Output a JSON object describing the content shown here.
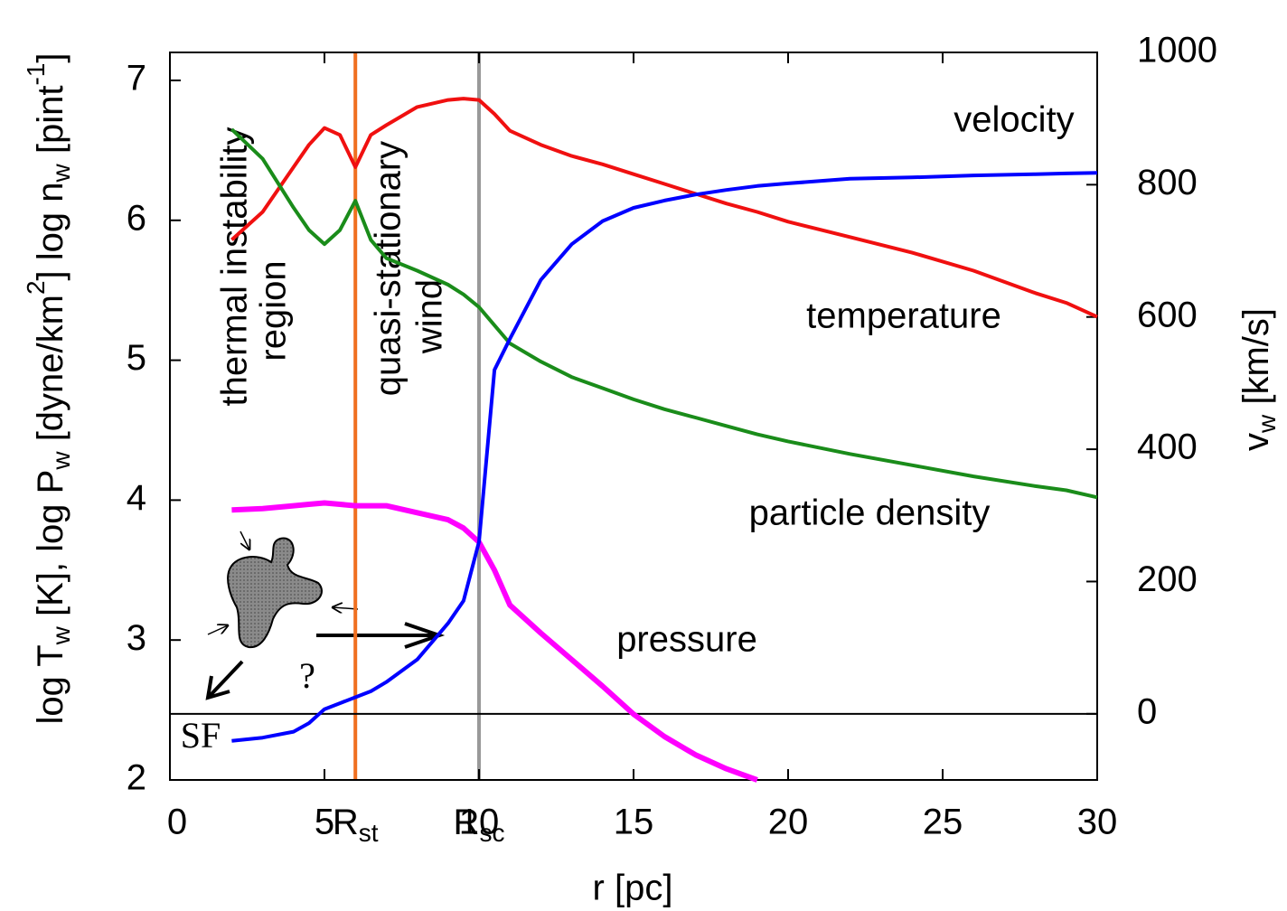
{
  "chart_data": {
    "type": "line",
    "x": [
      2,
      3,
      4,
      4.5,
      5,
      5.5,
      6,
      6.5,
      7,
      8,
      9,
      9.5,
      10,
      10.5,
      11,
      12,
      13,
      14,
      15,
      16,
      17,
      18,
      19,
      20,
      22,
      24,
      26,
      28,
      29,
      30
    ],
    "series": [
      {
        "name": "temperature",
        "color": "#f01010",
        "axis": "y",
        "values": [
          5.86,
          6.06,
          6.38,
          6.54,
          6.66,
          6.61,
          6.38,
          6.61,
          6.68,
          6.81,
          6.86,
          6.87,
          6.86,
          6.76,
          6.64,
          6.54,
          6.46,
          6.4,
          6.33,
          6.26,
          6.19,
          6.12,
          6.06,
          5.99,
          5.88,
          5.77,
          5.64,
          5.48,
          5.41,
          5.31
        ]
      },
      {
        "name": "particle density",
        "color": "#1a8c1a",
        "axis": "y",
        "values": [
          6.65,
          6.44,
          6.09,
          5.93,
          5.83,
          5.93,
          6.14,
          5.86,
          5.73,
          5.64,
          5.54,
          5.47,
          5.38,
          5.25,
          5.12,
          4.99,
          4.88,
          4.8,
          4.72,
          4.65,
          4.59,
          4.53,
          4.47,
          4.42,
          4.33,
          4.25,
          4.17,
          4.1,
          4.07,
          4.02
        ]
      },
      {
        "name": "pressure",
        "color": "#ff00ff",
        "axis": "y",
        "values": [
          3.93,
          3.94,
          3.96,
          3.97,
          3.98,
          3.97,
          3.96,
          3.96,
          3.96,
          3.91,
          3.86,
          3.8,
          3.7,
          3.5,
          3.25,
          3.05,
          2.86,
          2.67,
          2.47,
          2.31,
          2.18,
          2.08,
          2.0,
          null,
          null,
          null,
          null,
          null,
          null,
          null
        ]
      },
      {
        "name": "velocity",
        "color": "#0000ff",
        "axis": "y2",
        "values": [
          -41,
          -36,
          -27,
          -14,
          7,
          16,
          25,
          34,
          48,
          82,
          137,
          171,
          260,
          520,
          567,
          656,
          710,
          745,
          765,
          776,
          785,
          792,
          798,
          802,
          809,
          811,
          814,
          816,
          817,
          818
        ]
      }
    ],
    "xlim": [
      0,
      30
    ],
    "xticks": [
      0,
      5,
      10,
      15,
      20,
      25,
      30
    ],
    "ylim": [
      2,
      7.2
    ],
    "yticks": [
      2,
      3,
      4,
      5,
      6,
      7
    ],
    "y2lim": [
      -100,
      1000
    ],
    "y2ticks": [
      0,
      200,
      400,
      600,
      800,
      1000
    ],
    "xlabel": "r [pc]",
    "ylabel": [
      {
        "text": "log T"
      },
      {
        "sub": "w"
      },
      {
        "text": " [K], log P"
      },
      {
        "sub": "w"
      },
      {
        "text": " [dyne/km"
      },
      {
        "sup": "2"
      },
      {
        "text": "] log n"
      },
      {
        "sub": "w"
      },
      {
        "text": " [pint"
      },
      {
        "sup": "-1"
      },
      {
        "text": "]"
      }
    ],
    "y2label": [
      {
        "text": "v"
      },
      {
        "sub": "w"
      },
      {
        "text": " [km/s]"
      }
    ],
    "vlines": [
      {
        "x": 6,
        "color": "#f07020",
        "label": [
          {
            "text": "R"
          },
          {
            "sub": "st"
          }
        ]
      },
      {
        "x": 10,
        "color": "#999999",
        "label": [
          {
            "text": "R"
          },
          {
            "sub": "sc"
          }
        ]
      }
    ],
    "hline": {
      "y2": 0,
      "label": "SF"
    },
    "annotations": [
      {
        "lines": [
          "thermal instability",
          "region"
        ]
      },
      {
        "lines": [
          "quasi-stationary",
          "wind"
        ]
      },
      {
        "lines": [
          "?"
        ]
      }
    ]
  }
}
